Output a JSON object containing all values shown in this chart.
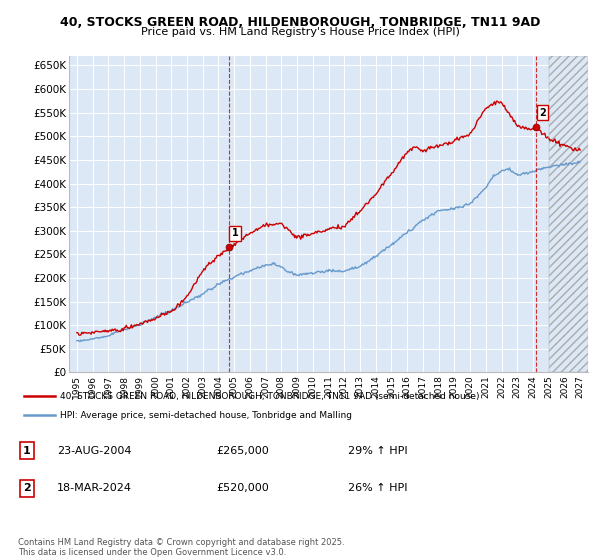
{
  "title1": "40, STOCKS GREEN ROAD, HILDENBOROUGH, TONBRIDGE, TN11 9AD",
  "title2": "Price paid vs. HM Land Registry's House Price Index (HPI)",
  "ylim": [
    0,
    670000
  ],
  "yticks": [
    0,
    50000,
    100000,
    150000,
    200000,
    250000,
    300000,
    350000,
    400000,
    450000,
    500000,
    550000,
    600000,
    650000
  ],
  "ytick_labels": [
    "£0",
    "£50K",
    "£100K",
    "£150K",
    "£200K",
    "£250K",
    "£300K",
    "£350K",
    "£400K",
    "£450K",
    "£500K",
    "£550K",
    "£600K",
    "£650K"
  ],
  "background_color": "#ffffff",
  "plot_bg_color": "#dce8f5",
  "grid_color": "#ffffff",
  "red_line_color": "#cc0000",
  "blue_line_color": "#6699cc",
  "legend_label_red": "40, STOCKS GREEN ROAD, HILDENBOROUGH, TONBRIDGE, TN11 9AD (semi-detached house)",
  "legend_label_blue": "HPI: Average price, semi-detached house, Tonbridge and Malling",
  "annotation1_date": "23-AUG-2004",
  "annotation1_price": "£265,000",
  "annotation1_hpi": "29% ↑ HPI",
  "annotation2_date": "18-MAR-2024",
  "annotation2_price": "£520,000",
  "annotation2_hpi": "26% ↑ HPI",
  "footer": "Contains HM Land Registry data © Crown copyright and database right 2025.\nThis data is licensed under the Open Government Licence v3.0.",
  "sale1_x": 2004.646,
  "sale1_y": 265000,
  "sale2_x": 2024.208,
  "sale2_y": 520000,
  "xlim": [
    1994.5,
    2027.5
  ],
  "xtick_years": [
    1995,
    1996,
    1997,
    1998,
    1999,
    2000,
    2001,
    2002,
    2003,
    2004,
    2005,
    2006,
    2007,
    2008,
    2009,
    2010,
    2011,
    2012,
    2013,
    2014,
    2015,
    2016,
    2017,
    2018,
    2019,
    2020,
    2021,
    2022,
    2023,
    2024,
    2025,
    2026,
    2027
  ],
  "hatch_start_x": 2025.0
}
